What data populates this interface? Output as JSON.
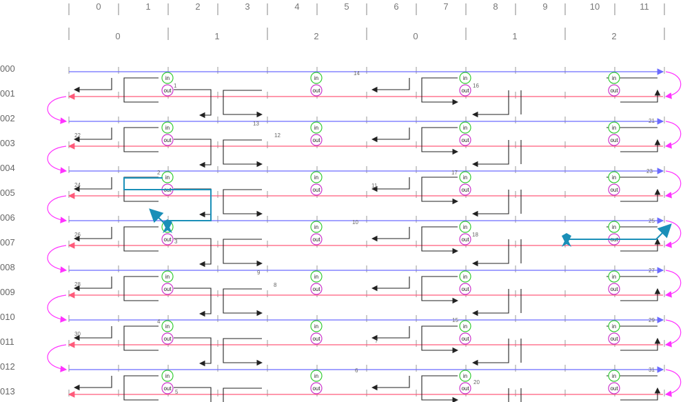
{
  "columns": [
    "0",
    "1",
    "2",
    "3",
    "4",
    "5",
    "6",
    "7",
    "8",
    "9",
    "10",
    "11"
  ],
  "groups": [
    "0",
    "1",
    "2",
    "0",
    "1",
    "2"
  ],
  "rows": [
    "000",
    "001",
    "002",
    "003",
    "004",
    "005",
    "006",
    "007",
    "008",
    "009",
    "010",
    "011",
    "012",
    "013"
  ],
  "colors": {
    "blue_line": "#6b6bff",
    "red_line": "#ff5a7a",
    "black_line": "#222222",
    "in_ring": "#33cc33",
    "out_ring": "#cc33cc",
    "highlight": "#1a8fb8",
    "grid": "#999999",
    "loop": "#ff33ff"
  },
  "ring_labels": {
    "in": "in",
    "out": "out"
  },
  "numbers": [
    {
      "text": "1",
      "row": 1
    },
    {
      "text": "2",
      "row": 4
    },
    {
      "text": "3",
      "row": 7
    },
    {
      "text": "4",
      "row": 10
    },
    {
      "text": "5",
      "row": 13
    },
    {
      "text": "6",
      "row": 12
    },
    {
      "text": "7",
      "row": 11
    },
    {
      "text": "8",
      "row": 9
    },
    {
      "text": "9",
      "row": 8
    },
    {
      "text": "10",
      "row": 6
    },
    {
      "text": "11",
      "row": 5
    },
    {
      "text": "12",
      "row": 3
    },
    {
      "text": "13",
      "row": 2
    },
    {
      "text": "14",
      "row": 0
    },
    {
      "text": "15",
      "row": 10
    },
    {
      "text": "16",
      "row": 1
    },
    {
      "text": "17",
      "row": 4
    },
    {
      "text": "18",
      "row": 7
    },
    {
      "text": "20",
      "row": 13
    },
    {
      "text": "21",
      "row": 2
    },
    {
      "text": "22",
      "row": 3
    },
    {
      "text": "23",
      "row": 4
    },
    {
      "text": "24",
      "row": 5
    },
    {
      "text": "25",
      "row": 6
    },
    {
      "text": "26",
      "row": 7
    },
    {
      "text": "27",
      "row": 8
    },
    {
      "text": "28",
      "row": 9
    },
    {
      "text": "29",
      "row": 10
    },
    {
      "text": "30",
      "row": 11
    },
    {
      "text": "31",
      "row": 12
    }
  ]
}
